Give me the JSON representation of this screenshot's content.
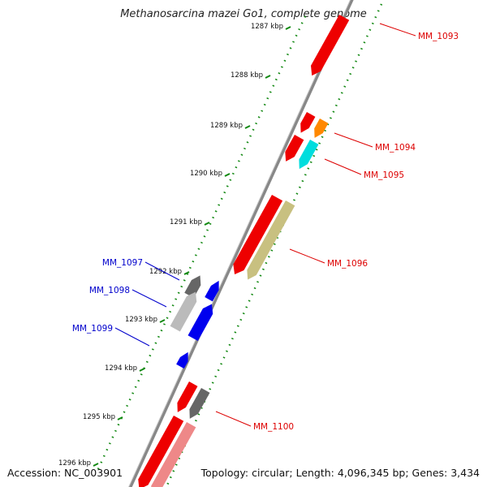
{
  "header": {
    "title": "Methanosarcina mazei Go1, complete genome"
  },
  "footer": {
    "accession": "Accession: NC_003901",
    "topology": "Topology: circular; Length: 4,096,345 bp; Genes: 3,434"
  },
  "ticks": [
    {
      "label": "1287 kbp",
      "kbp": 1287
    },
    {
      "label": "1288 kbp",
      "kbp": 1288
    },
    {
      "label": "1289 kbp",
      "kbp": 1289
    },
    {
      "label": "1290 kbp",
      "kbp": 1290
    },
    {
      "label": "1291 kbp",
      "kbp": 1291
    },
    {
      "label": "1292 kbp",
      "kbp": 1292
    },
    {
      "label": "1293 kbp",
      "kbp": 1293
    },
    {
      "label": "1294 kbp",
      "kbp": 1294
    },
    {
      "label": "1295 kbp",
      "kbp": 1295
    },
    {
      "label": "1296 kbp",
      "kbp": 1296
    }
  ],
  "gene_labels": [
    {
      "text": "MM_1093",
      "side": "right",
      "color": "#dd0000"
    },
    {
      "text": "MM_1094",
      "side": "right",
      "color": "#dd0000"
    },
    {
      "text": "MM_1095",
      "side": "right",
      "color": "#dd0000"
    },
    {
      "text": "MM_1096",
      "side": "right",
      "color": "#dd0000"
    },
    {
      "text": "MM_1097",
      "side": "left",
      "color": "#0000cc"
    },
    {
      "text": "MM_1098",
      "side": "left",
      "color": "#0000cc"
    },
    {
      "text": "MM_1099",
      "side": "left",
      "color": "#0000cc"
    },
    {
      "text": "MM_1100",
      "side": "right",
      "color": "#dd0000"
    }
  ],
  "colors": {
    "forward_gene": "#ee0000",
    "forward_gene_light": "#ee8888",
    "reverse_gene": "#0000ee",
    "tick_green": "#118811",
    "backbone": "#888888",
    "orange_feature": "#ff8800",
    "cyan_feature": "#00dddd",
    "khaki_feature": "#c8c080",
    "grey_feature": "#666666",
    "light_grey_feature": "#bbbbbb"
  }
}
